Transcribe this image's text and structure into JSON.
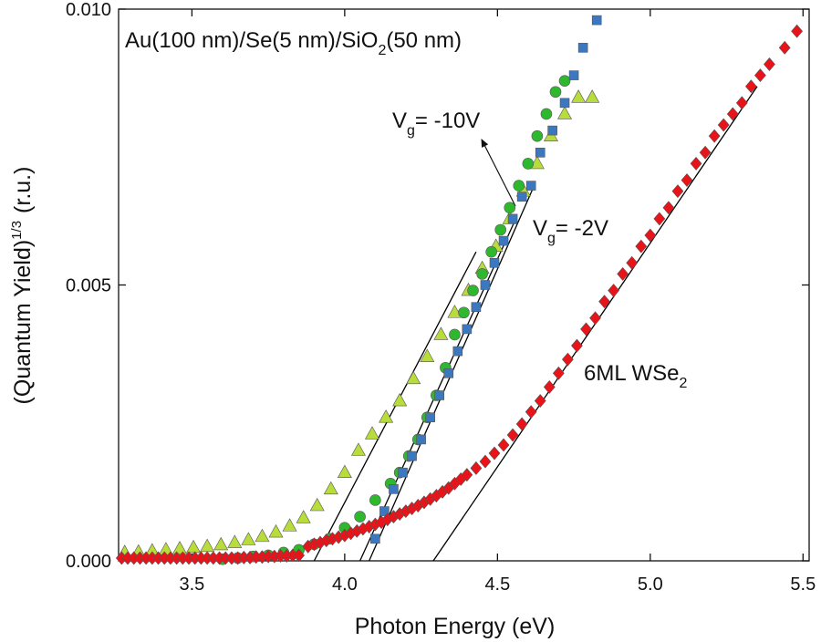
{
  "chart_data": {
    "type": "scatter",
    "x_label": "Photon Energy (eV)",
    "y_label": {
      "parts": [
        "(Quantum Yield)",
        "1/3",
        "(r.u.)"
      ],
      "sup": [
        1
      ]
    },
    "xlim": [
      3.26,
      5.52
    ],
    "ylim": [
      0,
      0.01
    ],
    "xticks": [
      {
        "value": 3.5,
        "label": "3.5"
      },
      {
        "value": 4.0,
        "label": "4.0"
      },
      {
        "value": 4.5,
        "label": "4.5"
      },
      {
        "value": 5.0,
        "label": "5.0"
      },
      {
        "value": 5.5,
        "label": "5.5"
      }
    ],
    "yticks": [
      {
        "value": 0,
        "label": "0.000"
      },
      {
        "value": 0.005,
        "label": "0.005"
      },
      {
        "value": 0.01,
        "label": "0.010"
      }
    ],
    "series": [
      {
        "marker": "triangle",
        "color": "#b8dc3c",
        "x": [
          3.28,
          3.325,
          3.37,
          3.415,
          3.46,
          3.505,
          3.55,
          3.595,
          3.64,
          3.685,
          3.73,
          3.775,
          3.82,
          3.865,
          3.91,
          3.955,
          4.0,
          4.045,
          4.09,
          4.135,
          4.18,
          4.225,
          4.27,
          4.315,
          4.36,
          4.405,
          4.45,
          4.495,
          4.54,
          4.585,
          4.63,
          4.675,
          4.72,
          4.765,
          4.81
        ],
        "values": [
          0.00015,
          0.00016,
          0.00018,
          0.0002,
          0.00022,
          0.00024,
          0.00026,
          0.00029,
          0.00033,
          0.00038,
          0.00044,
          0.00052,
          0.00063,
          0.00078,
          0.001,
          0.0013,
          0.0016,
          0.002,
          0.0023,
          0.0026,
          0.0029,
          0.0033,
          0.0037,
          0.0041,
          0.0045,
          0.0049,
          0.0053,
          0.0057,
          0.0062,
          0.0067,
          0.0072,
          0.0077,
          0.0081,
          0.0084,
          0.0084
        ]
      },
      {
        "marker": "circle",
        "color": "#2db82d",
        "x": [
          3.6,
          3.65,
          3.7,
          3.75,
          3.8,
          3.85,
          3.9,
          3.95,
          4.0,
          4.05,
          4.1,
          4.15,
          4.18,
          4.21,
          4.24,
          4.27,
          4.3,
          4.33,
          4.36,
          4.39,
          4.42,
          4.45,
          4.48,
          4.51,
          4.54,
          4.57,
          4.6,
          4.63,
          4.66,
          4.69,
          4.72
        ],
        "values": [
          3e-05,
          5e-05,
          8e-05,
          0.0001,
          0.00015,
          0.0002,
          0.0003,
          0.0004,
          0.0006,
          0.0008,
          0.0011,
          0.0014,
          0.0016,
          0.0019,
          0.0022,
          0.0026,
          0.003,
          0.0035,
          0.0041,
          0.0045,
          0.0049,
          0.0052,
          0.0056,
          0.006,
          0.0064,
          0.0068,
          0.0072,
          0.0077,
          0.0081,
          0.0085,
          0.0087
        ]
      },
      {
        "marker": "square",
        "color": "#3b78c0",
        "x": [
          4.1,
          4.13,
          4.16,
          4.19,
          4.22,
          4.25,
          4.28,
          4.31,
          4.34,
          4.37,
          4.4,
          4.43,
          4.46,
          4.49,
          4.52,
          4.55,
          4.58,
          4.61,
          4.64,
          4.68,
          4.72,
          4.75,
          4.78,
          4.825
        ],
        "values": [
          0.0004,
          0.0009,
          0.0013,
          0.0016,
          0.0019,
          0.0022,
          0.0026,
          0.003,
          0.0034,
          0.0038,
          0.0042,
          0.0046,
          0.005,
          0.0054,
          0.0058,
          0.0062,
          0.0066,
          0.0068,
          0.0074,
          0.0078,
          0.0083,
          0.0088,
          0.0093,
          0.0098
        ]
      },
      {
        "marker": "diamond",
        "color": "#e8141a",
        "x": [
          3.27,
          3.29,
          3.31,
          3.33,
          3.35,
          3.37,
          3.39,
          3.41,
          3.43,
          3.45,
          3.47,
          3.49,
          3.51,
          3.53,
          3.55,
          3.57,
          3.59,
          3.61,
          3.63,
          3.65,
          3.67,
          3.69,
          3.71,
          3.73,
          3.75,
          3.77,
          3.79,
          3.81,
          3.83,
          3.85,
          3.88,
          3.9,
          3.92,
          3.94,
          3.96,
          3.98,
          4.0,
          4.02,
          4.04,
          4.06,
          4.08,
          4.1,
          4.12,
          4.14,
          4.16,
          4.18,
          4.2,
          4.22,
          4.24,
          4.26,
          4.28,
          4.3,
          4.32,
          4.34,
          4.36,
          4.38,
          4.4,
          4.43,
          4.46,
          4.49,
          4.52,
          4.55,
          4.58,
          4.61,
          4.64,
          4.67,
          4.7,
          4.73,
          4.76,
          4.79,
          4.82,
          4.85,
          4.88,
          4.91,
          4.94,
          4.97,
          5.0,
          5.03,
          5.06,
          5.09,
          5.12,
          5.15,
          5.18,
          5.21,
          5.24,
          5.27,
          5.3,
          5.33,
          5.36,
          5.39,
          5.44,
          5.48
        ],
        "values": [
          5e-05,
          5e-05,
          5e-05,
          5e-05,
          5e-05,
          5e-05,
          5e-05,
          5e-05,
          5e-05,
          5e-05,
          5e-05,
          5e-05,
          5e-05,
          5e-05,
          5e-05,
          5e-05,
          5e-05,
          5e-05,
          5e-05,
          5e-05,
          6e-05,
          6e-05,
          7e-05,
          7e-05,
          8e-05,
          8e-05,
          9e-05,
          9e-05,
          0.0001,
          0.0001,
          0.00026,
          0.0003,
          0.00033,
          0.00037,
          0.0004,
          0.00043,
          0.00046,
          0.0005,
          0.00054,
          0.00058,
          0.00062,
          0.00066,
          0.0007,
          0.00075,
          0.0008,
          0.00085,
          0.0009,
          0.00095,
          0.001,
          0.00106,
          0.00112,
          0.00118,
          0.00125,
          0.00132,
          0.0014,
          0.00148,
          0.00156,
          0.00168,
          0.0018,
          0.00195,
          0.0021,
          0.00228,
          0.00248,
          0.0027,
          0.0029,
          0.00315,
          0.0034,
          0.00365,
          0.0039,
          0.0042,
          0.0044,
          0.0047,
          0.0049,
          0.0052,
          0.0054,
          0.0057,
          0.0059,
          0.0062,
          0.0064,
          0.0067,
          0.0069,
          0.0072,
          0.0074,
          0.0077,
          0.0079,
          0.0081,
          0.0083,
          0.0086,
          0.0088,
          0.009,
          0.0093,
          0.0096
        ]
      }
    ],
    "fit_lines": [
      {
        "color": "#000000",
        "x": [
          3.9,
          4.43
        ],
        "values": [
          0,
          0.0056
        ]
      },
      {
        "color": "#000000",
        "x": [
          4.05,
          4.56
        ],
        "values": [
          0,
          0.0062
        ]
      },
      {
        "color": "#000000",
        "x": [
          4.08,
          4.62
        ],
        "values": [
          0,
          0.0068
        ]
      },
      {
        "color": "#000000",
        "x": [
          4.29,
          5.35
        ],
        "values": [
          0,
          0.0086
        ]
      }
    ],
    "annotations": [
      {
        "parts": [
          "Au(100 nm)/Se(5 nm)/SiO",
          "2",
          "(50 nm)"
        ],
        "sub": [
          1
        ]
      },
      {
        "parts": [
          "V",
          "g",
          "= -10V"
        ],
        "sub": [
          1
        ]
      },
      {
        "parts": [
          "V",
          "g",
          "= -2V"
        ],
        "sub": [
          1
        ]
      },
      {
        "parts": [
          "6ML WSe",
          "2"
        ],
        "sub": [
          1
        ]
      }
    ]
  }
}
